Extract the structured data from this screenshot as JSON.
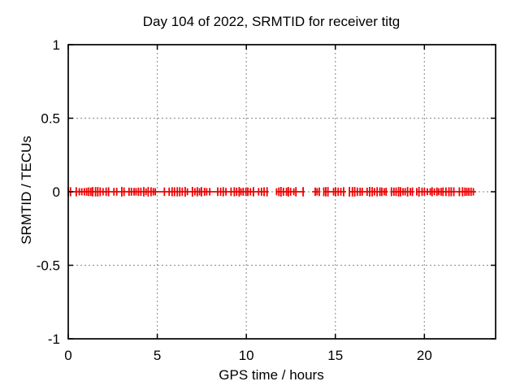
{
  "chart_data": {
    "type": "scatter",
    "title": "Day 104 of 2022, SRMTID for receiver titg",
    "xlabel": "GPS time / hours",
    "ylabel": "SRMTID / TECUs",
    "xlim": [
      0,
      24
    ],
    "ylim": [
      -1,
      1
    ],
    "xticks": [
      0,
      5,
      10,
      15,
      20
    ],
    "xtick_labels": [
      "0",
      "5",
      "10",
      "15",
      "20"
    ],
    "yticks": [
      -1,
      -0.5,
      0,
      0.5,
      1
    ],
    "ytick_labels": [
      "-1",
      "-0.5",
      "0",
      "0.5",
      "1"
    ],
    "grid": true,
    "legend": "none",
    "colors": {
      "series": "#ee0000",
      "grid": "#999999",
      "border": "#000000",
      "background": "#ffffff",
      "text": "#000000"
    },
    "series": [
      {
        "name": "SRMTID",
        "style": "errorbars",
        "value": 0,
        "marker_spacing_hours": 0.14,
        "segments_hours": [
          [
            0.0,
            11.25
          ],
          [
            11.7,
            13.28
          ],
          [
            13.7,
            14.12
          ],
          [
            14.35,
            15.6
          ],
          [
            15.79,
            17.95
          ],
          [
            18.15,
            19.42
          ],
          [
            19.57,
            22.9
          ]
        ]
      }
    ]
  }
}
